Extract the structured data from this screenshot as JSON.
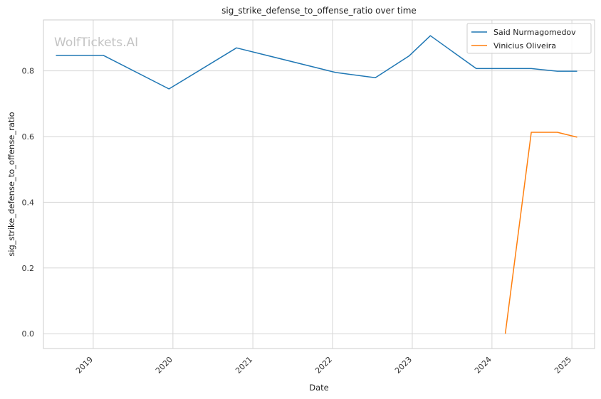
{
  "chart_data": {
    "type": "line",
    "title": "sig_strike_defense_to_offense_ratio over time",
    "xlabel": "Date",
    "ylabel": "sig_strike_defense_to_offense_ratio",
    "x_ticks": [
      "2019",
      "2020",
      "2021",
      "2022",
      "2023",
      "2024",
      "2025"
    ],
    "y_ticks": [
      "0.0",
      "0.2",
      "0.4",
      "0.6",
      "0.8"
    ],
    "xlim": [
      "2018-05-18",
      "2025-04-15"
    ],
    "ylim": [
      -0.045,
      0.955
    ],
    "grid": true,
    "legend_position": "top-right",
    "watermark": "WolfTickets.AI",
    "series": [
      {
        "name": "Said Nurmagomedov",
        "color": "#1f77b4",
        "points": [
          {
            "x": "2018-07-14",
            "y": 0.847
          },
          {
            "x": "2019-02-17",
            "y": 0.847
          },
          {
            "x": "2019-12-14",
            "y": 0.745
          },
          {
            "x": "2020-10-18",
            "y": 0.87
          },
          {
            "x": "2022-01-15",
            "y": 0.795
          },
          {
            "x": "2022-07-16",
            "y": 0.779
          },
          {
            "x": "2022-12-17",
            "y": 0.845
          },
          {
            "x": "2023-03-25",
            "y": 0.907
          },
          {
            "x": "2023-10-21",
            "y": 0.807
          },
          {
            "x": "2024-06-29",
            "y": 0.807
          },
          {
            "x": "2024-10-26",
            "y": 0.799
          },
          {
            "x": "2025-01-25",
            "y": 0.799
          }
        ]
      },
      {
        "name": "Vinicius Oliveira",
        "color": "#ff7f0e",
        "points": [
          {
            "x": "2024-03-02",
            "y": 0.0
          },
          {
            "x": "2024-06-29",
            "y": 0.613
          },
          {
            "x": "2024-10-26",
            "y": 0.613
          },
          {
            "x": "2025-01-25",
            "y": 0.598
          }
        ]
      }
    ]
  }
}
